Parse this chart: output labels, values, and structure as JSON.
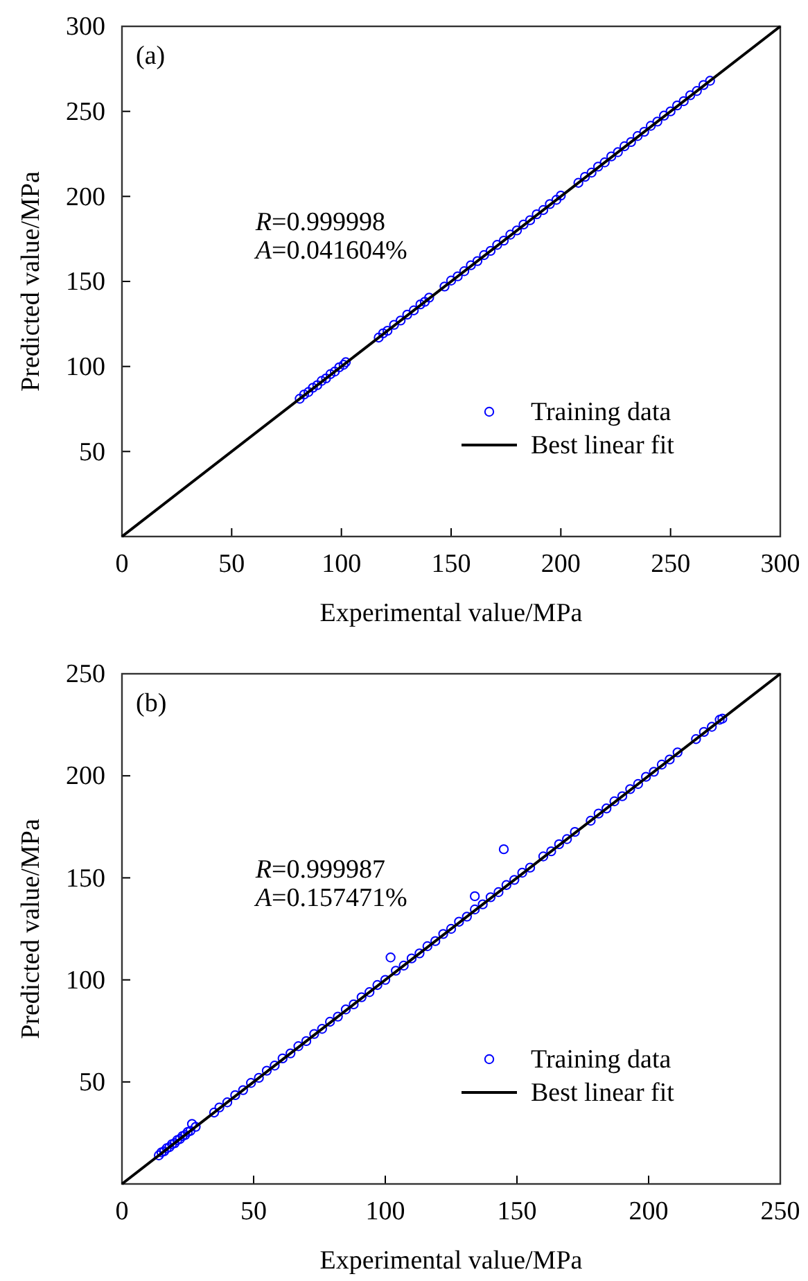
{
  "chart_data": [
    {
      "type": "scatter",
      "xlabel": "Experimental value/MPa",
      "ylabel": "Predicted value/MPa",
      "xlim": [
        0,
        300
      ],
      "ylim": [
        0,
        300
      ],
      "xticks": [
        0,
        50,
        100,
        150,
        200,
        250,
        300
      ],
      "yticks": [
        50,
        100,
        150,
        200,
        250,
        300
      ],
      "grid": false,
      "legend": "bottom right",
      "annotations": [
        "(a)",
        "R=0.999998",
        "A=0.041604%"
      ],
      "series": [
        {
          "name": "Training data",
          "marker": "circle",
          "color": "#0000ff",
          "x": [
            81,
            83,
            85,
            87,
            89,
            91,
            93,
            95,
            97,
            99,
            101,
            102,
            117,
            119,
            121,
            124,
            127,
            130,
            133,
            136,
            138,
            140,
            147,
            150,
            153,
            156,
            159,
            162,
            165,
            168,
            171,
            174,
            177,
            180,
            183,
            186,
            189,
            192,
            195,
            198,
            200,
            208,
            211,
            214,
            217,
            220,
            223,
            226,
            229,
            232,
            235,
            238,
            241,
            244,
            247,
            250,
            253,
            256,
            259,
            262,
            265,
            268
          ],
          "values": [
            81,
            83.5,
            85,
            87.5,
            89,
            91.5,
            93,
            95.5,
            97,
            99.5,
            101,
            102.5,
            117,
            119.5,
            121,
            124.5,
            127,
            130.5,
            133,
            136.5,
            138,
            140.5,
            147,
            150.5,
            153,
            156,
            159.5,
            162,
            165.5,
            168,
            171.5,
            174,
            177.5,
            180,
            183.5,
            186,
            189.5,
            192,
            195.5,
            198,
            200.5,
            208,
            211.5,
            214,
            217.5,
            220,
            223.5,
            226,
            229.5,
            232,
            235.5,
            238,
            241.5,
            244,
            247.5,
            250,
            253.5,
            256,
            259.5,
            262,
            265.5,
            268
          ]
        },
        {
          "name": "Best linear fit",
          "type": "line",
          "marker": "none",
          "color": "#000000",
          "x": [
            0,
            300
          ],
          "values": [
            0,
            300
          ]
        }
      ]
    },
    {
      "type": "scatter",
      "xlabel": "Experimental value/MPa",
      "ylabel": "Predicted value/MPa",
      "xlim": [
        0,
        250
      ],
      "ylim": [
        0,
        250
      ],
      "xticks": [
        0,
        50,
        100,
        150,
        200,
        250
      ],
      "yticks": [
        50,
        100,
        150,
        200,
        250
      ],
      "grid": false,
      "legend": "bottom right",
      "annotations": [
        "(b)",
        "R=0.999987",
        "A=0.157471%"
      ],
      "series": [
        {
          "name": "Training data",
          "marker": "circle",
          "color": "#0000ff",
          "x": [
            14,
            15,
            16,
            17,
            18,
            19,
            20,
            21,
            22,
            23,
            24,
            25,
            26,
            26.6,
            28,
            35,
            37,
            40,
            43,
            46,
            49,
            52,
            55,
            58,
            61,
            64,
            67,
            70,
            73,
            76,
            79,
            82,
            85,
            88,
            91,
            94,
            97,
            100,
            102,
            104,
            107,
            110,
            113,
            116,
            119,
            122,
            125,
            128,
            131,
            134,
            134,
            137,
            140,
            143,
            145,
            146,
            149,
            152,
            155,
            160,
            163,
            166,
            169,
            172,
            178,
            181,
            184,
            187,
            190,
            193,
            196,
            199,
            202,
            205,
            208,
            211,
            218,
            221,
            224,
            227,
            228
          ],
          "values": [
            14,
            15.5,
            16,
            17.5,
            18,
            19.5,
            20,
            21.5,
            22,
            23.5,
            24,
            25.5,
            26,
            29.4,
            28,
            35,
            37.5,
            40,
            43.5,
            46,
            49.5,
            52,
            55.5,
            58,
            61.5,
            64,
            67.5,
            70,
            73.5,
            76,
            79.5,
            82,
            85.5,
            88,
            91.5,
            94,
            97.5,
            100,
            111,
            104.5,
            107,
            110.5,
            113,
            116.5,
            119,
            122.5,
            125,
            128.5,
            131,
            141,
            134.5,
            137,
            140.5,
            143,
            164,
            146.5,
            149,
            152.5,
            155,
            160.5,
            163,
            166.5,
            169,
            172.5,
            178,
            181.5,
            184,
            187.5,
            190,
            193.5,
            196,
            199.5,
            202,
            205.5,
            208,
            211.5,
            218,
            221.5,
            224,
            227.5,
            228
          ]
        },
        {
          "name": "Best linear fit",
          "type": "line",
          "marker": "none",
          "color": "#000000",
          "x": [
            0,
            250
          ],
          "values": [
            0,
            250
          ]
        }
      ]
    }
  ]
}
